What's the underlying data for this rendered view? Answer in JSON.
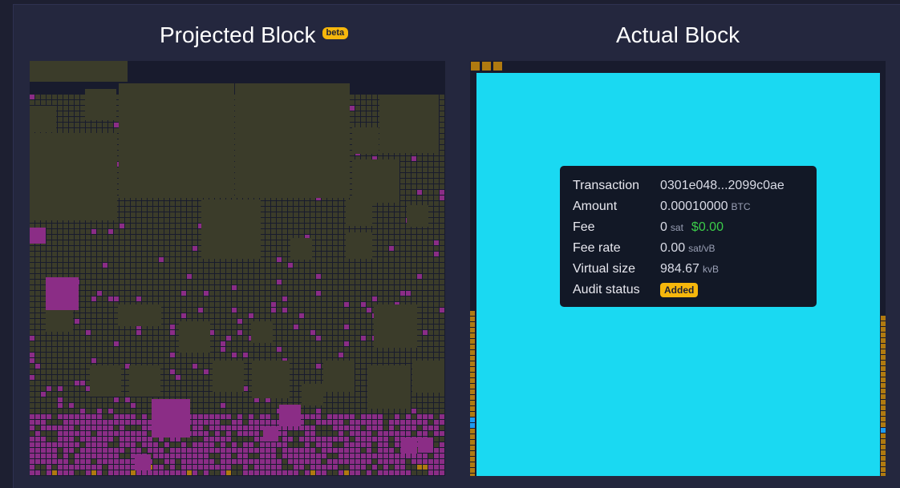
{
  "headings": {
    "projected": "Projected Block",
    "beta_badge": "beta",
    "actual": "Actual Block"
  },
  "colors": {
    "background": "#1d1f31",
    "panel": "#24273e",
    "block_bg": "#181b2d",
    "low_fee_tx": "#3b3c2a",
    "high_fee_tx": "#8b2d86",
    "orange_tx": "#b07a10",
    "selected_tx": "#1ad9f2",
    "accent_yellow": "#f6b70c",
    "link_cyan": "#2bd0f6",
    "fiat_green": "#3bcc49"
  },
  "tooltip": {
    "transaction_label": "Transaction",
    "transaction_value": "0301e048...2099c0ae",
    "amount_label": "Amount",
    "amount_value": "0.00010000",
    "amount_unit": "BTC",
    "fee_label": "Fee",
    "fee_value": "0",
    "fee_unit": "sat",
    "fee_usd": "$0.00",
    "fee_rate_label": "Fee rate",
    "fee_rate_value": "0.00",
    "fee_rate_unit": "sat/vB",
    "vsize_label": "Virtual size",
    "vsize_value": "984.67",
    "vsize_unit": "kvB",
    "audit_label": "Audit status",
    "audit_value": "Added"
  }
}
